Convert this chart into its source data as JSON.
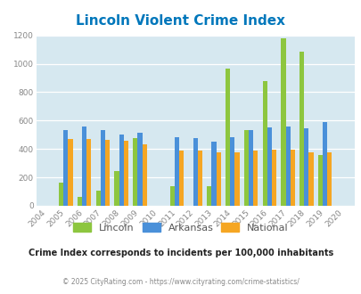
{
  "title": "Lincoln Violent Crime Index",
  "years": [
    2004,
    2005,
    2006,
    2007,
    2008,
    2009,
    2010,
    2011,
    2012,
    2013,
    2014,
    2015,
    2016,
    2017,
    2018,
    2019,
    2020
  ],
  "lincoln": [
    0,
    160,
    60,
    105,
    245,
    475,
    0,
    135,
    0,
    135,
    965,
    535,
    880,
    1180,
    1085,
    360,
    0
  ],
  "arkansas": [
    0,
    530,
    555,
    535,
    500,
    515,
    0,
    485,
    475,
    450,
    485,
    535,
    550,
    555,
    545,
    590,
    0
  ],
  "national": [
    0,
    470,
    470,
    465,
    455,
    435,
    0,
    390,
    390,
    375,
    375,
    390,
    395,
    395,
    375,
    375,
    0
  ],
  "lincoln_color": "#8dc63f",
  "arkansas_color": "#4a90d9",
  "national_color": "#f5a623",
  "bg_color": "#d6e8f0",
  "title_color": "#0077bb",
  "subtitle_text": "Crime Index corresponds to incidents per 100,000 inhabitants",
  "footer_text": "© 2025 CityRating.com - https://www.cityrating.com/crime-statistics/",
  "ylim": [
    0,
    1200
  ],
  "yticks": [
    0,
    200,
    400,
    600,
    800,
    1000,
    1200
  ],
  "bar_width": 0.25,
  "legend_labels": [
    "Lincoln",
    "Arkansas",
    "National"
  ]
}
